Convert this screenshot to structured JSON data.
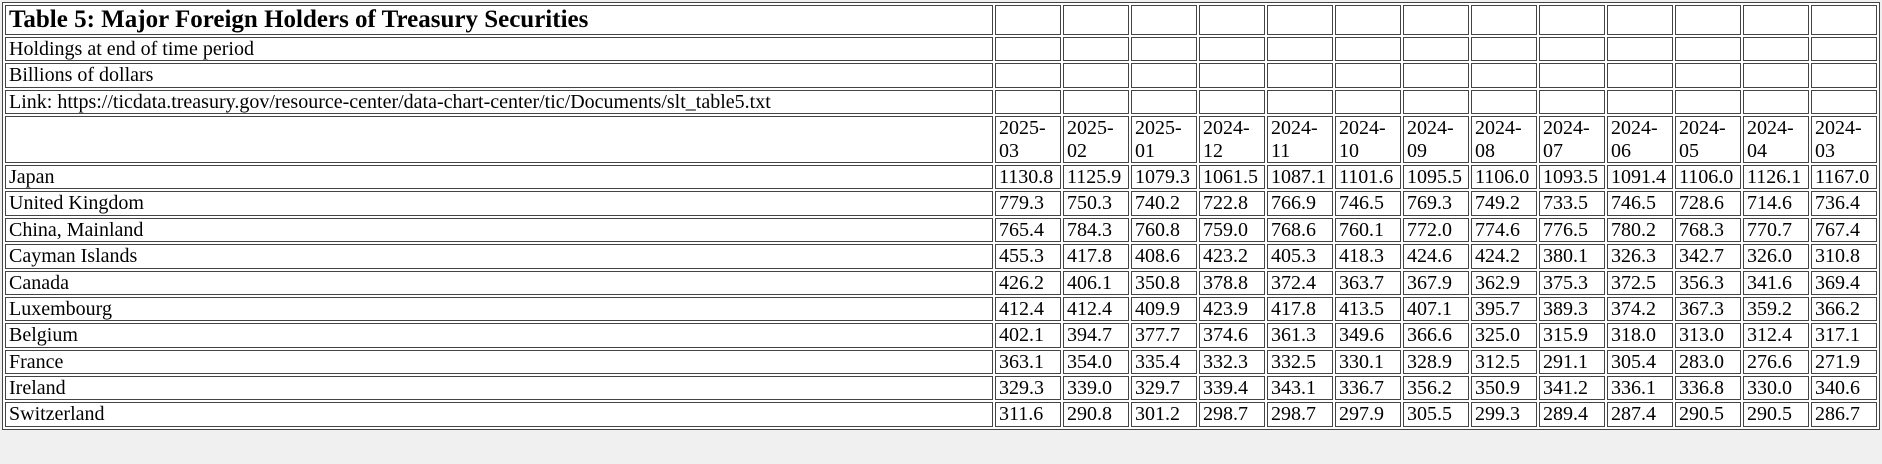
{
  "page": {
    "background": "#f0f0f0",
    "table_border_color": "#444444"
  },
  "table": {
    "info_rows": [
      "Holdings at end of time period",
      "Billions of dollars",
      "Link: https://ticdata.treasury.gov/resource-center/data-chart-center/tic/Documents/slt_table5.txt"
    ]
  },
  "chart_data": {
    "type": "table",
    "title": "Table 5: Major Foreign Holders of Treasury Securities",
    "subtitle": "Holdings at end of time period",
    "unit": "Billions of dollars",
    "source_link_text": "Link: https://ticdata.treasury.gov/resource-center/data-chart-center/tic/Documents/slt_table5.txt",
    "columns": [
      "2025-03",
      "2025-02",
      "2025-01",
      "2024-12",
      "2024-11",
      "2024-10",
      "2024-09",
      "2024-08",
      "2024-07",
      "2024-06",
      "2024-05",
      "2024-04",
      "2024-03"
    ],
    "rows": [
      {
        "country": "Japan",
        "values": [
          "1130.8",
          "1125.9",
          "1079.3",
          "1061.5",
          "1087.1",
          "1101.6",
          "1095.5",
          "1106.0",
          "1093.5",
          "1091.4",
          "1106.0",
          "1126.1",
          "1167.0"
        ]
      },
      {
        "country": "United Kingdom",
        "values": [
          "779.3",
          "750.3",
          "740.2",
          "722.8",
          "766.9",
          "746.5",
          "769.3",
          "749.2",
          "733.5",
          "746.5",
          "728.6",
          "714.6",
          "736.4"
        ]
      },
      {
        "country": "China, Mainland",
        "values": [
          "765.4",
          "784.3",
          "760.8",
          "759.0",
          "768.6",
          "760.1",
          "772.0",
          "774.6",
          "776.5",
          "780.2",
          "768.3",
          "770.7",
          "767.4"
        ]
      },
      {
        "country": "Cayman Islands",
        "values": [
          "455.3",
          "417.8",
          "408.6",
          "423.2",
          "405.3",
          "418.3",
          "424.6",
          "424.2",
          "380.1",
          "326.3",
          "342.7",
          "326.0",
          "310.8"
        ]
      },
      {
        "country": "Canada",
        "values": [
          "426.2",
          "406.1",
          "350.8",
          "378.8",
          "372.4",
          "363.7",
          "367.9",
          "362.9",
          "375.3",
          "372.5",
          "356.3",
          "341.6",
          "369.4"
        ]
      },
      {
        "country": "Luxembourg",
        "values": [
          "412.4",
          "412.4",
          "409.9",
          "423.9",
          "417.8",
          "413.5",
          "407.1",
          "395.7",
          "389.3",
          "374.2",
          "367.3",
          "359.2",
          "366.2"
        ]
      },
      {
        "country": "Belgium",
        "values": [
          "402.1",
          "394.7",
          "377.7",
          "374.6",
          "361.3",
          "349.6",
          "366.6",
          "325.0",
          "315.9",
          "318.0",
          "313.0",
          "312.4",
          "317.1"
        ]
      },
      {
        "country": "France",
        "values": [
          "363.1",
          "354.0",
          "335.4",
          "332.3",
          "332.5",
          "330.1",
          "328.9",
          "312.5",
          "291.1",
          "305.4",
          "283.0",
          "276.6",
          "271.9"
        ]
      },
      {
        "country": "Ireland",
        "values": [
          "329.3",
          "339.0",
          "329.7",
          "339.4",
          "343.1",
          "336.7",
          "356.2",
          "350.9",
          "341.2",
          "336.1",
          "336.8",
          "330.0",
          "340.6"
        ]
      },
      {
        "country": "Switzerland",
        "values": [
          "311.6",
          "290.8",
          "301.2",
          "298.7",
          "298.7",
          "297.9",
          "305.5",
          "299.3",
          "289.4",
          "287.4",
          "290.5",
          "290.5",
          "286.7"
        ]
      }
    ]
  }
}
